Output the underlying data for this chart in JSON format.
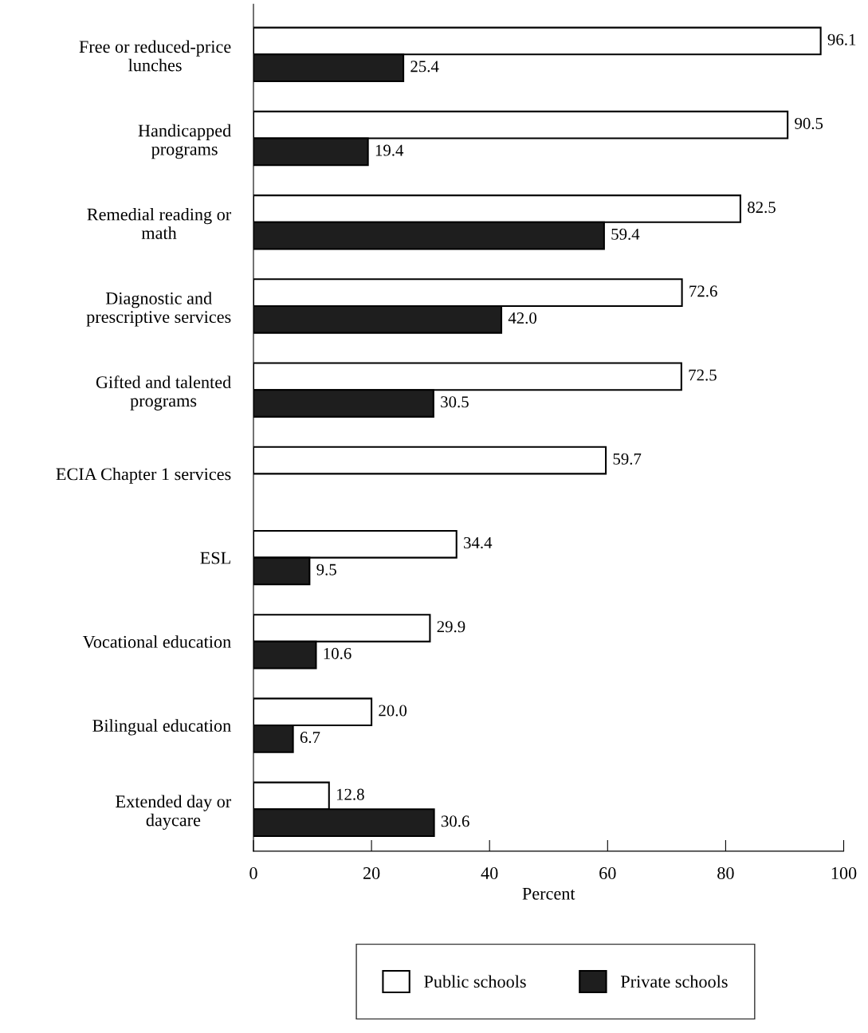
{
  "chart_data": {
    "type": "bar",
    "orientation": "horizontal",
    "xlabel": "Percent",
    "categories": [
      "Free or reduced-price\nlunches",
      "Handicapped\nprograms",
      "Remedial reading or\nmath",
      "Diagnostic and\nprescriptive services",
      "Gifted and talented\nprograms",
      "ECIA Chapter 1 services",
      "ESL",
      "Vocational education",
      "Bilingual education",
      "Extended day or\ndaycare"
    ],
    "series": [
      {
        "name": "Public schools",
        "color": "#ffffff",
        "values": [
          96.1,
          90.5,
          82.5,
          72.6,
          72.5,
          59.7,
          34.4,
          29.9,
          20.0,
          12.8
        ],
        "value_labels": [
          "96.1",
          "90.5",
          "82.5",
          "72.6",
          "72.5",
          "59.7",
          "34.4",
          "29.9",
          "20.0",
          "12.8"
        ]
      },
      {
        "name": "Private schools",
        "color": "#1e1e1e",
        "values": [
          25.4,
          19.4,
          59.4,
          42.0,
          30.5,
          null,
          9.5,
          10.6,
          6.7,
          30.6
        ],
        "value_labels": [
          "25.4",
          "19.4",
          "59.4",
          "42.0",
          "30.5",
          null,
          "9.5",
          "10.6",
          "6.7",
          "30.6"
        ]
      }
    ],
    "xlim": [
      0,
      100
    ],
    "xticks": [
      0,
      20,
      40,
      60,
      80,
      100
    ],
    "grid": false,
    "legend": "bottom"
  }
}
